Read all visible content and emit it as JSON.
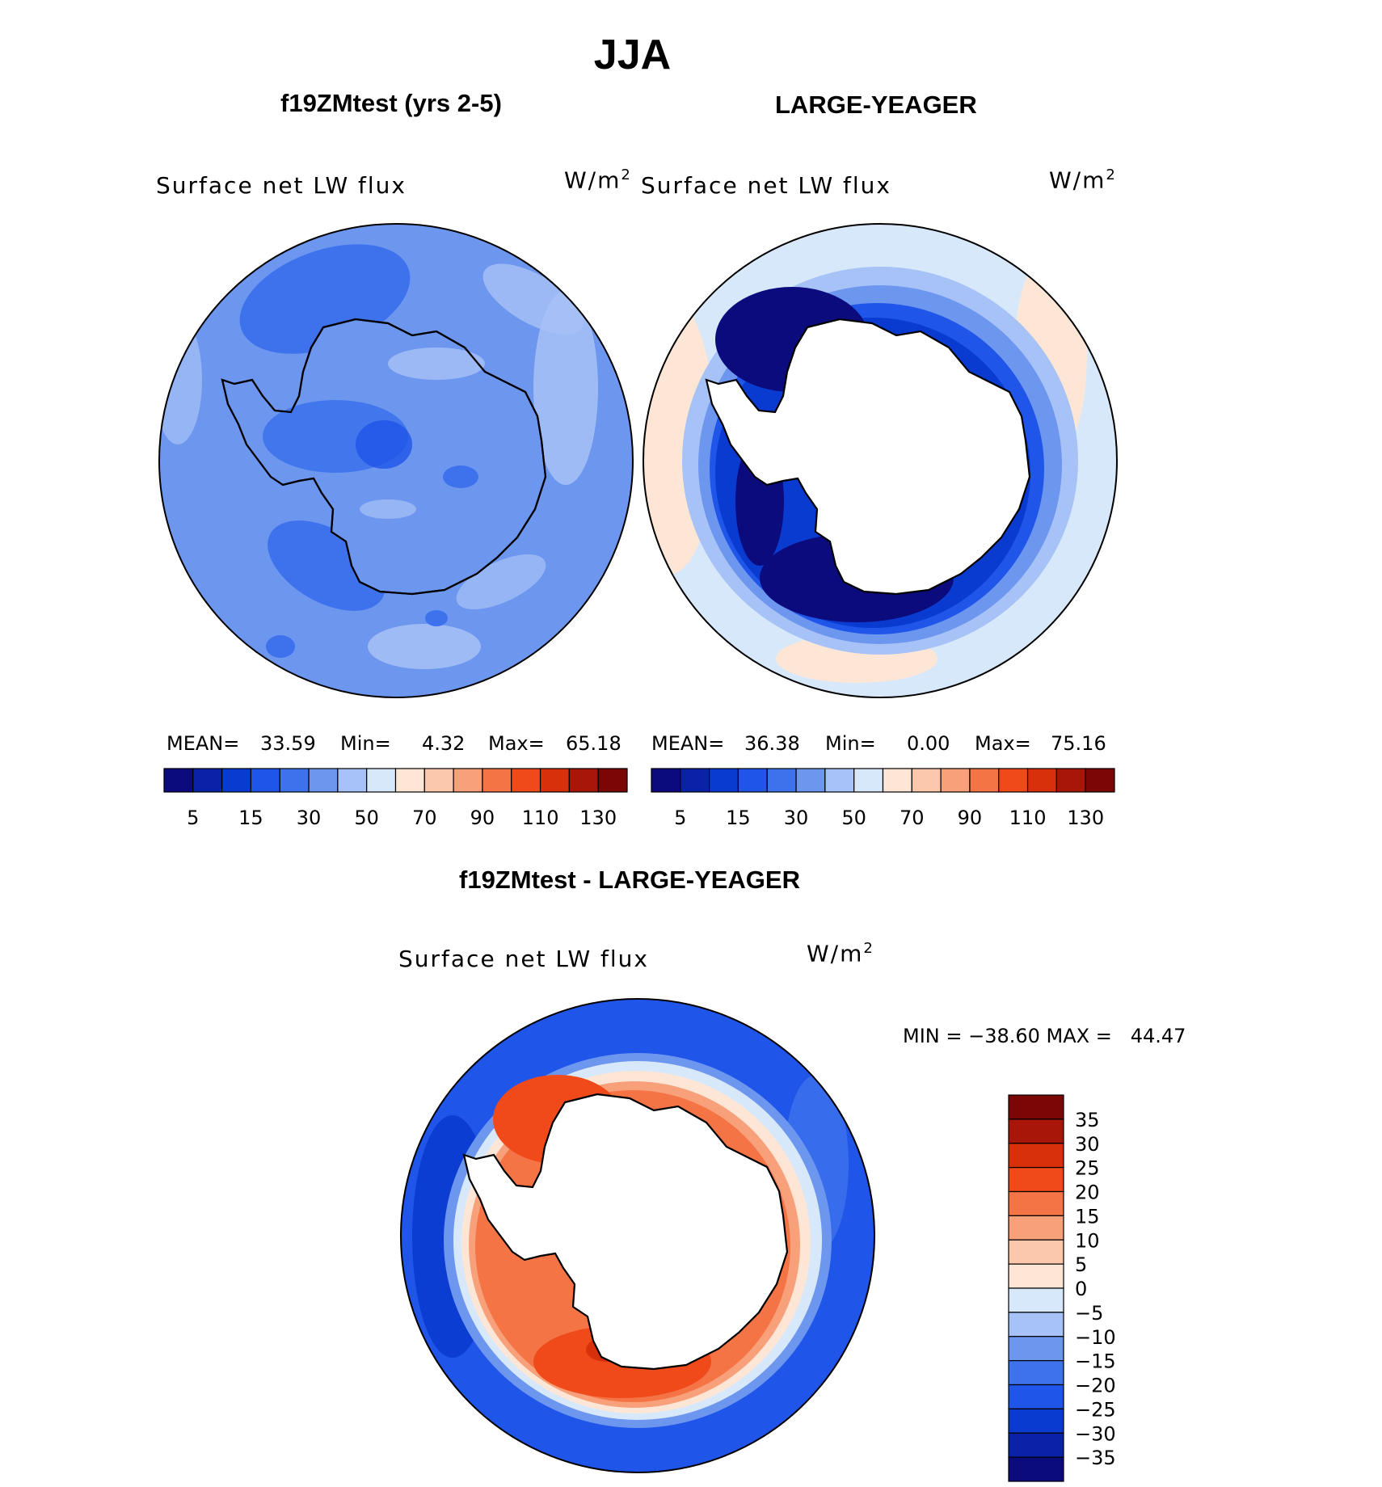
{
  "title": "JJA",
  "panels": [
    {
      "id": "test",
      "case_title": "f19ZMtest (yrs 2-5)",
      "field": "Surface net LW flux",
      "units_base": "W/m",
      "units_exp": "2",
      "stats": {
        "mean_label": "MEAN=",
        "mean": "33.59",
        "min_label": "Min=",
        "min": "4.32",
        "max_label": "Max=",
        "max": "65.18"
      }
    },
    {
      "id": "obs",
      "case_title": "LARGE-YEAGER",
      "field": "Surface net LW flux",
      "units_base": "W/m",
      "units_exp": "2",
      "stats": {
        "mean_label": "MEAN=",
        "mean": "36.38",
        "min_label": "Min=",
        "min": "0.00",
        "max_label": "Max=",
        "max": "75.16"
      }
    },
    {
      "id": "diff",
      "case_title": "f19ZMtest - LARGE-YEAGER",
      "field": "Surface net LW flux",
      "units_base": "W/m",
      "units_exp": "2",
      "stats_text": "MIN = −38.60 MAX =   44.47"
    }
  ],
  "colorbar_main": {
    "colors": [
      "#0b0b7e",
      "#0a22a8",
      "#0a3bd0",
      "#1f55e8",
      "#3d72ec",
      "#6d96ef",
      "#a7c2f6",
      "#d8e8fb",
      "#fde6d5",
      "#fbc8ac",
      "#f8a07a",
      "#f47445",
      "#f04a1b",
      "#d9300c",
      "#a8160a",
      "#7a0606"
    ],
    "tick_labels": [
      "5",
      "15",
      "30",
      "50",
      "70",
      "90",
      "110",
      "130"
    ]
  },
  "colorbar_diff": {
    "colors": [
      "#7a0606",
      "#a8160a",
      "#d9300c",
      "#f04a1b",
      "#f47445",
      "#f8a07a",
      "#fbc8ac",
      "#fde6d5",
      "#d8e8fb",
      "#a7c2f6",
      "#6d96ef",
      "#3d72ec",
      "#1f55e8",
      "#0a3bd0",
      "#0a22a8",
      "#0b0b7e"
    ],
    "tick_labels": [
      "35",
      "30",
      "25",
      "20",
      "15",
      "10",
      "5",
      "0",
      "−5",
      "−10",
      "−15",
      "−20",
      "−25",
      "−30",
      "−35"
    ]
  }
}
